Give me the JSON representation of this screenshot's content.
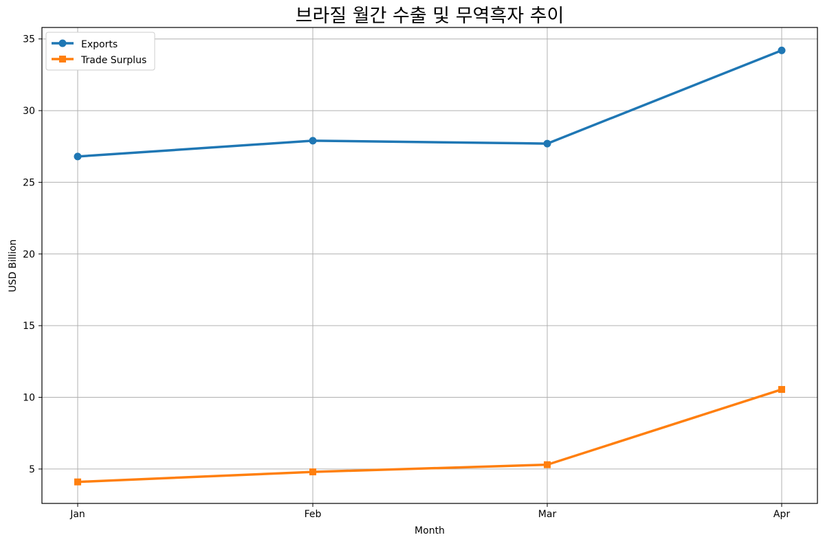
{
  "chart_data": {
    "type": "line",
    "title": "브라질 월간 수출 및 무역흑자 추이",
    "xlabel": "Month",
    "ylabel": "USD Billion",
    "categories": [
      "Jan",
      "Feb",
      "Mar",
      "Apr"
    ],
    "ylim": [
      2.6,
      35.8
    ],
    "yticks": [
      5,
      10,
      15,
      20,
      25,
      30,
      35
    ],
    "grid": true,
    "legend_position": "top-left",
    "series": [
      {
        "name": "Exports",
        "values": [
          26.8,
          27.9,
          27.7,
          34.2
        ],
        "color": "#1f77b4",
        "marker": "circle"
      },
      {
        "name": "Trade Surplus",
        "values": [
          4.1,
          4.8,
          5.3,
          10.55
        ],
        "color": "#ff7f0e",
        "marker": "square"
      }
    ]
  }
}
